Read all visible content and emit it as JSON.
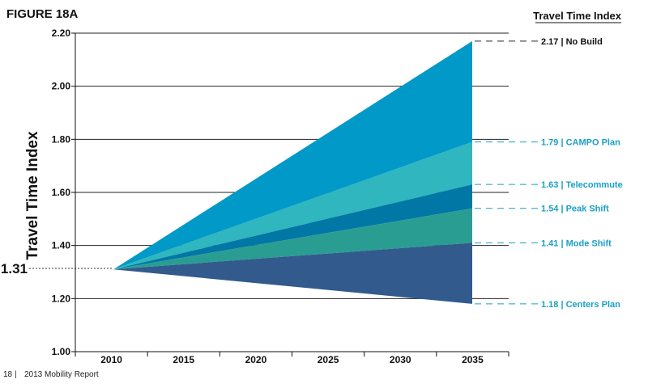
{
  "figure_label": "FIGURE 18A",
  "legend_title": "Travel Time Index",
  "footer": {
    "page_number": "18",
    "separator": "|",
    "report": "2013 Mobility Report"
  },
  "chart_data": {
    "type": "area",
    "title": "FIGURE 18A",
    "ylabel": "Travel Time Index",
    "xlabel": "",
    "x_categories": [
      "2010",
      "2015",
      "2020",
      "2025",
      "2030",
      "2035"
    ],
    "ylim": [
      1.0,
      2.2
    ],
    "yticks": [
      "1.00",
      "1.20",
      "1.40",
      "1.60",
      "1.80",
      "2.00",
      "2.20"
    ],
    "ytick_values": [
      1.0,
      1.2,
      1.4,
      1.6,
      1.8,
      2.0,
      2.2
    ],
    "grid": true,
    "start": {
      "x": 2010,
      "value": 1.31,
      "label": "1.31"
    },
    "end_x": 2035,
    "series": [
      {
        "name": "No Build",
        "value_2035": 2.17,
        "label": "2.17 | No Build",
        "color": "#0099c8",
        "label_color": "#111111",
        "line_color": "#222222"
      },
      {
        "name": "CAMPO Plan",
        "value_2035": 1.79,
        "label": "1.79 | CAMPO Plan",
        "color": "#2fb6be",
        "label_color": "#1a9fc6",
        "line_color": "#1a9fc6"
      },
      {
        "name": "Telecommute",
        "value_2035": 1.63,
        "label": "1.63 | Telecommute",
        "color": "#0077a5",
        "label_color": "#1a9fc6",
        "line_color": "#1a9fc6"
      },
      {
        "name": "Peak Shift",
        "value_2035": 1.54,
        "label": "1.54 | Peak Shift",
        "color": "#2a9d92",
        "label_color": "#1a9fc6",
        "line_color": "#1a9fc6"
      },
      {
        "name": "Mode Shift",
        "value_2035": 1.41,
        "label": "1.41 | Mode Shift",
        "color": "#325a8c",
        "label_color": "#1a9fc6",
        "line_color": "#1a9fc6"
      },
      {
        "name": "Centers Plan",
        "value_2035": 1.18,
        "label": "1.18 | Centers Plan",
        "color": "#325a8c",
        "label_color": "#1a9fc6",
        "line_color": "#1a9fc6"
      }
    ]
  }
}
